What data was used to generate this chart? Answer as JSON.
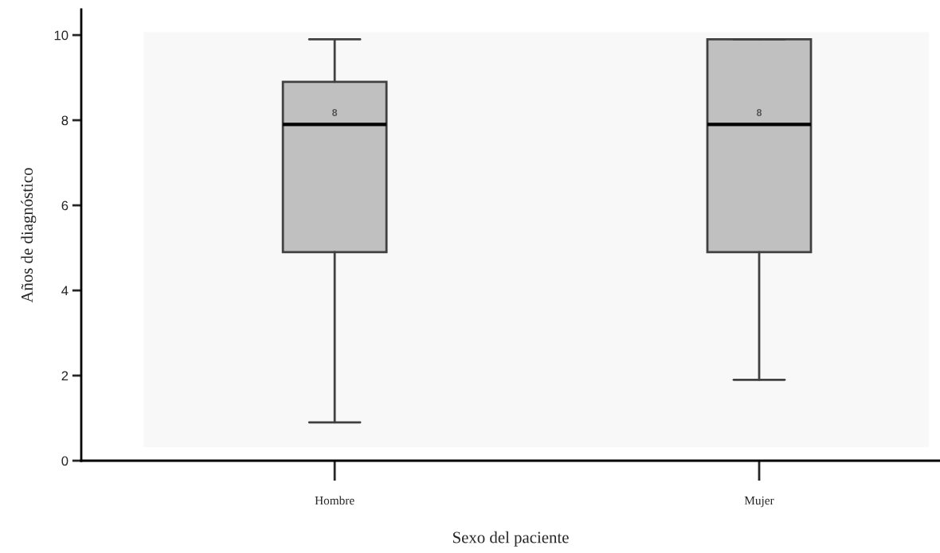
{
  "chart_data": {
    "type": "box",
    "xlabel": "Sexo del paciente",
    "ylabel": "Años de diagnóstico",
    "categories": [
      "Hombre",
      "Mujer"
    ],
    "boxes": [
      {
        "low": 0.9,
        "q1": 4.9,
        "median": 7.9,
        "q3": 8.9,
        "high": 9.9
      },
      {
        "low": 1.9,
        "q1": 4.9,
        "median": 7.9,
        "q3": 9.9,
        "high": 9.9
      }
    ],
    "color": "#c0c0c0",
    "annotations": [
      "8",
      "8"
    ],
    "ylim": [
      0,
      10.6
    ],
    "yticks": [
      0,
      2,
      4,
      6,
      8,
      10
    ],
    "grid": false
  }
}
